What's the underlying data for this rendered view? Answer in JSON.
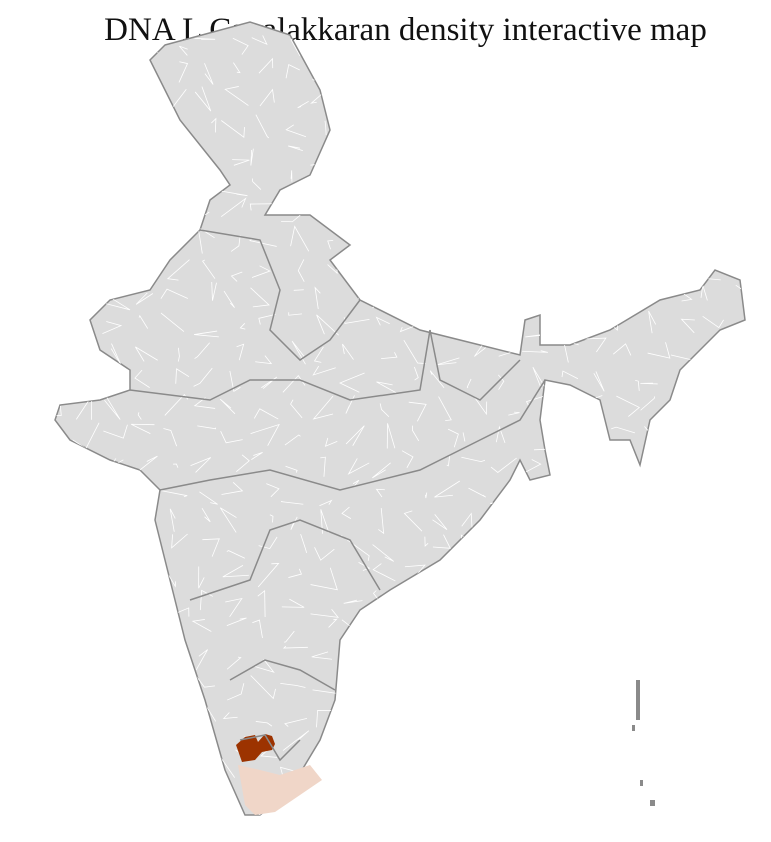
{
  "title": "DNA L Cavalakkaran density interactive map",
  "map": {
    "region": "India",
    "unit": "districts",
    "colors": {
      "land": "#dcdcdc",
      "district_border": "#ffffff",
      "state_border": "#8a8a8a",
      "high_density": "#9c3300",
      "low_density": "#f0d6c8"
    },
    "highlighted": [
      {
        "level": "high",
        "area": "northern Kerala districts"
      },
      {
        "level": "low",
        "area": "southern Kerala and southern Tamil Nadu districts"
      }
    ]
  }
}
